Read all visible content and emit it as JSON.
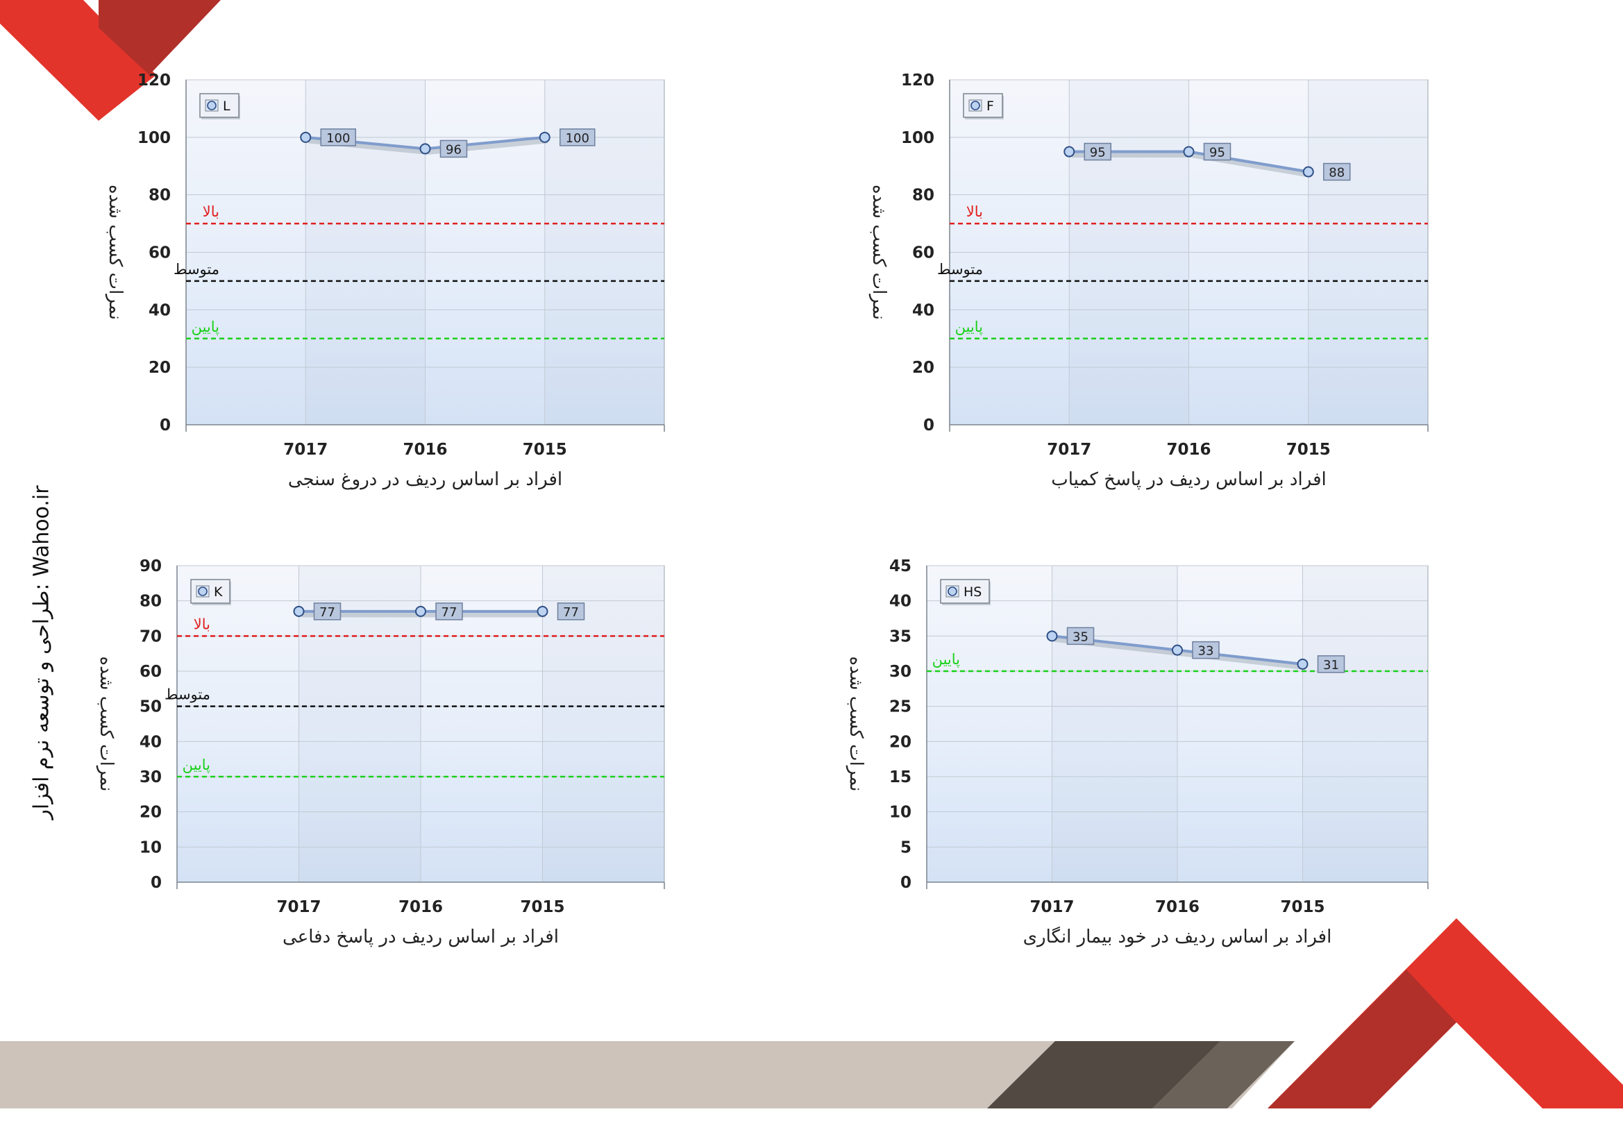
{
  "side_text": "طراحی و توسعه نرم افزار: Wahoo.ir",
  "colors": {
    "red": "#e3342b",
    "dark_red": "#b1302a",
    "gray_band": "#cdc3bb",
    "dark_band": "#524a42",
    "mid_band": "#6b625a"
  },
  "chart_data": [
    {
      "type": "line",
      "legend": "L",
      "legend_position": "top-left",
      "categories": [
        "7017",
        "7016",
        "7015"
      ],
      "values": [
        100,
        96,
        100
      ],
      "ylim": [
        0,
        120
      ],
      "ytick_step": 20,
      "ylabel": "نمرات کسب شده",
      "xlabel": "افراد بر اساس ردیف در دروغ سنجی",
      "thresholds": [
        {
          "label": "بالا",
          "value": 70,
          "color": "#e01f1f"
        },
        {
          "label": "متوسط",
          "value": 50,
          "color": "#111111"
        },
        {
          "label": "پایین",
          "value": 30,
          "color": "#19d119"
        }
      ],
      "grid": true
    },
    {
      "type": "line",
      "legend": "F",
      "legend_position": "top-left",
      "categories": [
        "7017",
        "7016",
        "7015"
      ],
      "values": [
        95,
        95,
        88
      ],
      "ylim": [
        0,
        120
      ],
      "ytick_step": 20,
      "ylabel": "نمرات کسب شده",
      "xlabel": "افراد بر اساس ردیف در پاسخ کمیاب",
      "thresholds": [
        {
          "label": "بالا",
          "value": 70,
          "color": "#e01f1f"
        },
        {
          "label": "متوسط",
          "value": 50,
          "color": "#111111"
        },
        {
          "label": "پایین",
          "value": 30,
          "color": "#19d119"
        }
      ],
      "grid": true
    },
    {
      "type": "line",
      "legend": "K",
      "legend_position": "top-left",
      "categories": [
        "7017",
        "7016",
        "7015"
      ],
      "values": [
        77,
        77,
        77
      ],
      "ylim": [
        0,
        90
      ],
      "ytick_step": 10,
      "ylabel": "نمرات کسب شده",
      "xlabel": "افراد بر اساس ردیف در پاسخ دفاعی",
      "thresholds": [
        {
          "label": "بالا",
          "value": 70,
          "color": "#e01f1f"
        },
        {
          "label": "متوسط",
          "value": 50,
          "color": "#111111"
        },
        {
          "label": "پایین",
          "value": 30,
          "color": "#19d119"
        }
      ],
      "grid": true
    },
    {
      "type": "line",
      "legend": "HS",
      "legend_position": "top-left",
      "categories": [
        "7017",
        "7016",
        "7015"
      ],
      "values": [
        35,
        33,
        31
      ],
      "ylim": [
        0,
        45
      ],
      "ytick_step": 5,
      "ylabel": "نمرات کسب شده",
      "xlabel": "افراد بر اساس ردیف در خود بیمار انگاری",
      "thresholds": [
        {
          "label": "پایین",
          "value": 30,
          "color": "#19d119"
        }
      ],
      "grid": true
    }
  ]
}
